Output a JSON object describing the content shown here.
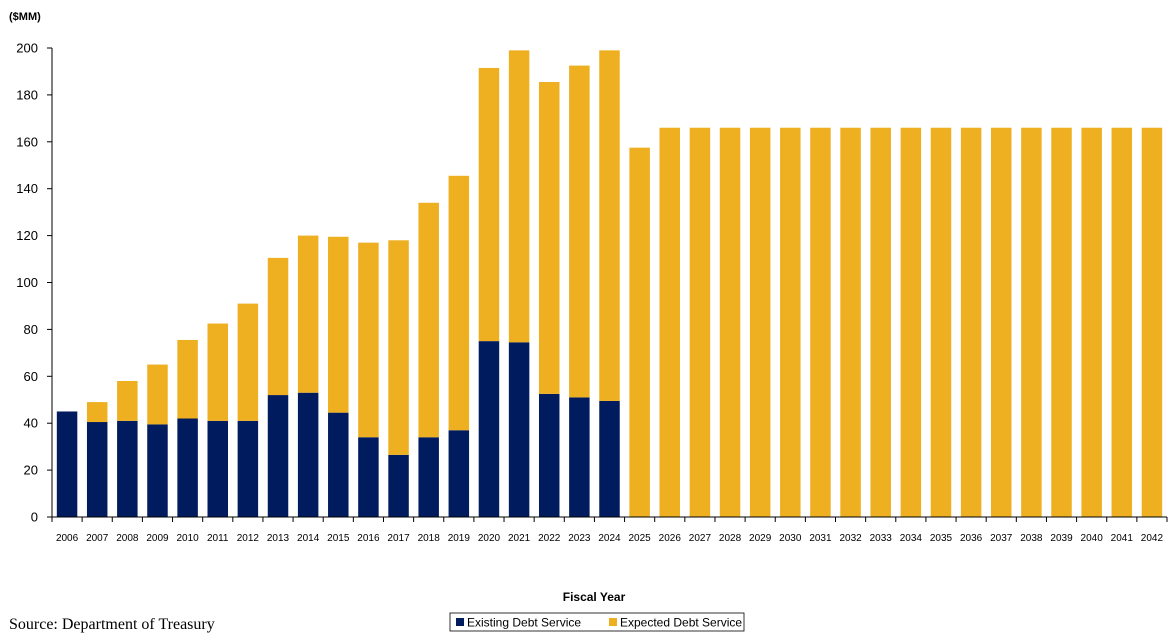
{
  "chart_data": {
    "type": "bar",
    "stacked": true,
    "title": "",
    "unit_label": "($MM)",
    "xlabel": "Fiscal Year",
    "ylabel": "",
    "ylim": [
      0,
      200
    ],
    "yticks": [
      0,
      20,
      40,
      60,
      80,
      100,
      120,
      140,
      160,
      180,
      200
    ],
    "grid": false,
    "legend_position": "bottom",
    "categories": [
      "2006",
      "2007",
      "2008",
      "2009",
      "2010",
      "2011",
      "2012",
      "2013",
      "2014",
      "2015",
      "2016",
      "2017",
      "2018",
      "2019",
      "2020",
      "2021",
      "2022",
      "2023",
      "2024",
      "2025",
      "2026",
      "2027",
      "2028",
      "2029",
      "2030",
      "2031",
      "2032",
      "2033",
      "2034",
      "2035",
      "2036",
      "2037",
      "2038",
      "2039",
      "2040",
      "2041",
      "2042"
    ],
    "series": [
      {
        "name": "Existing Debt Service",
        "color": "#001b5e",
        "values": [
          45,
          40.5,
          41,
          39.5,
          42,
          41,
          41,
          52,
          53,
          44.5,
          34,
          26.5,
          34,
          37,
          75,
          74.5,
          52.5,
          51,
          49.5,
          0,
          0,
          0,
          0,
          0,
          0,
          0,
          0,
          0,
          0,
          0,
          0,
          0,
          0,
          0,
          0,
          0,
          0
        ]
      },
      {
        "name": "Expected Debt Service",
        "color": "#eeaf20",
        "values": [
          0,
          8.5,
          17,
          25.5,
          33.5,
          41.5,
          50,
          58.5,
          67,
          75,
          83,
          91.5,
          100,
          108.5,
          116.5,
          124.5,
          133,
          141.5,
          149.5,
          157.5,
          166,
          166,
          166,
          166,
          166,
          166,
          166,
          166,
          166,
          166,
          166,
          166,
          166,
          166,
          166,
          166,
          166
        ]
      }
    ]
  },
  "source_text": "Source: Department of Treasury"
}
